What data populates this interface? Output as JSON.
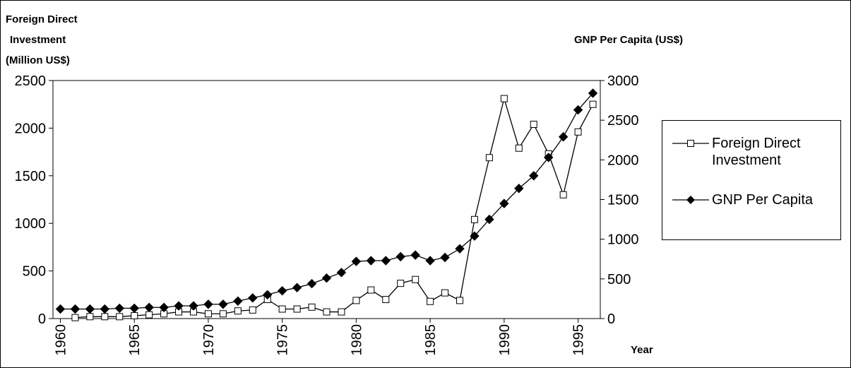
{
  "chart_data": {
    "type": "line",
    "ylabel_lines": [
      "Foreign Direct",
      "Investment",
      "(Million US$)"
    ],
    "y2label": "GNP Per Capita (US$)",
    "xlabel": "Year",
    "x": [
      1960,
      1961,
      1962,
      1963,
      1964,
      1965,
      1966,
      1967,
      1968,
      1969,
      1970,
      1971,
      1972,
      1973,
      1974,
      1975,
      1976,
      1977,
      1978,
      1979,
      1980,
      1981,
      1982,
      1983,
      1984,
      1985,
      1986,
      1987,
      1988,
      1989,
      1990,
      1991,
      1992,
      1993,
      1994,
      1995,
      1996
    ],
    "xlim": [
      1959.5,
      1996.5
    ],
    "xticks": [
      1960,
      1965,
      1970,
      1975,
      1980,
      1985,
      1990,
      1995
    ],
    "ylim": [
      0,
      2500
    ],
    "yticks": [
      0,
      500,
      1000,
      1500,
      2000,
      2500
    ],
    "y2lim": [
      0,
      3000
    ],
    "y2ticks": [
      0,
      500,
      1000,
      1500,
      2000,
      2500,
      3000
    ],
    "series": [
      {
        "name": "Foreign Direct Investment",
        "color": "#000000",
        "marker": "square",
        "values": [
          null,
          10,
          20,
          20,
          20,
          30,
          40,
          50,
          70,
          70,
          50,
          50,
          80,
          90,
          200,
          100,
          100,
          120,
          70,
          70,
          190,
          300,
          200,
          370,
          410,
          180,
          270,
          190,
          1040,
          1690,
          2310,
          1790,
          2040,
          1730,
          1300,
          1960,
          2250
        ]
      },
      {
        "name": "GNP Per Capita",
        "color": "#000000",
        "marker": "diamond",
        "axis": "y2",
        "values": [
          120,
          120,
          120,
          120,
          130,
          130,
          140,
          140,
          160,
          160,
          180,
          180,
          220,
          260,
          300,
          350,
          390,
          440,
          510,
          580,
          720,
          730,
          730,
          780,
          800,
          730,
          770,
          880,
          1040,
          1250,
          1450,
          1640,
          1800,
          2030,
          2290,
          2630,
          2840
        ]
      }
    ]
  }
}
